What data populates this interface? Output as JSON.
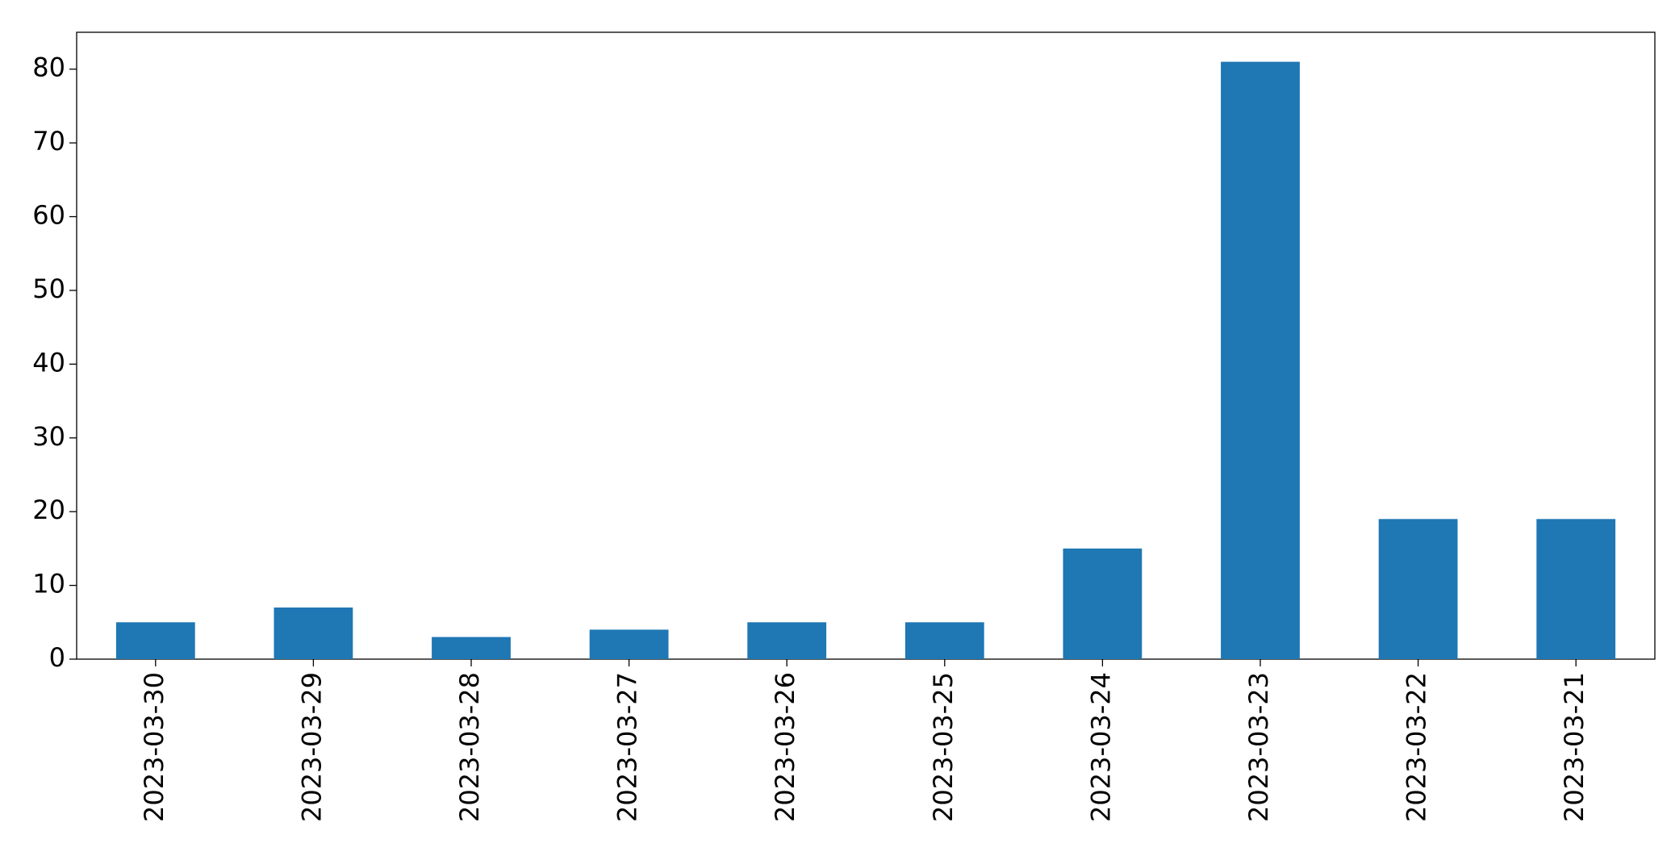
{
  "chart_data": {
    "type": "bar",
    "categories": [
      "2023-03-30",
      "2023-03-29",
      "2023-03-28",
      "2023-03-27",
      "2023-03-26",
      "2023-03-25",
      "2023-03-24",
      "2023-03-23",
      "2023-03-22",
      "2023-03-21"
    ],
    "values": [
      5,
      7,
      3,
      4,
      5,
      5,
      15,
      81,
      19,
      19
    ],
    "color": "#1f77b4",
    "ylim": [
      0,
      85
    ],
    "yticks": [
      0,
      10,
      20,
      30,
      40,
      50,
      60,
      70,
      80
    ],
    "grid": false
  }
}
